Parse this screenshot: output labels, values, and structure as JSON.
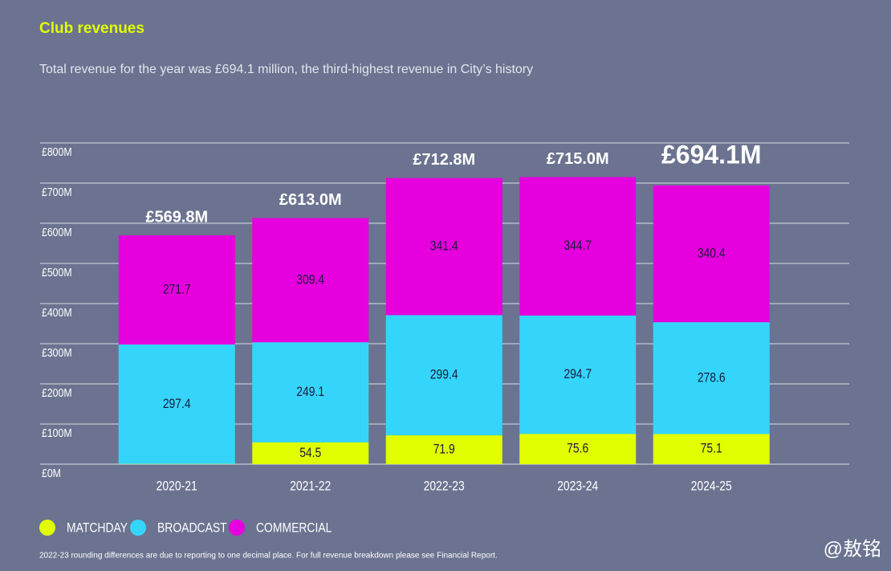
{
  "chart_data": {
    "type": "stacked_bar",
    "title": "Club revenues",
    "subtitle": "Total revenue for the year was £694.1 million, the third-highest revenue in City’s history",
    "categories": [
      "2020-21",
      "2021-22",
      "2022-23",
      "2023-24",
      "2024-25"
    ],
    "series": [
      {
        "name": "MATCHDAY",
        "color": "#e1ff00",
        "values": [
          0.7,
          54.5,
          71.9,
          75.6,
          75.1
        ]
      },
      {
        "name": "BROADCAST",
        "color": "#35d5fb",
        "values": [
          297.4,
          249.1,
          299.4,
          294.7,
          278.6
        ]
      },
      {
        "name": "COMMERCIAL",
        "color": "#e600de",
        "values": [
          271.7,
          309.4,
          341.4,
          344.7,
          340.4
        ]
      }
    ],
    "totals": {
      "values": [
        569.8,
        613.0,
        712.8,
        715.0,
        694.1
      ],
      "value_labels": [
        "£569.8M",
        "£613.0M",
        "£712.8M",
        "£715.0M",
        "£694.1M"
      ]
    },
    "ylim": [
      0,
      800
    ],
    "yticks": [
      {
        "value": 0,
        "label": "£0M"
      },
      {
        "value": 100,
        "label": "£100M"
      },
      {
        "value": 200,
        "label": "£200M"
      },
      {
        "value": 300,
        "label": "£300M"
      },
      {
        "value": 400,
        "label": "£400M"
      },
      {
        "value": 500,
        "label": "£500M"
      },
      {
        "value": 600,
        "label": "£600M"
      },
      {
        "value": 700,
        "label": "£700M"
      },
      {
        "value": 800,
        "label": "£800M"
      }
    ],
    "grid": true,
    "legend": "bottom-left",
    "footnote": "2022-23 rounding differences are due to reporting to one decimal place. For full revenue breakdown please see Financial Report.",
    "watermark": "@敖铭"
  }
}
